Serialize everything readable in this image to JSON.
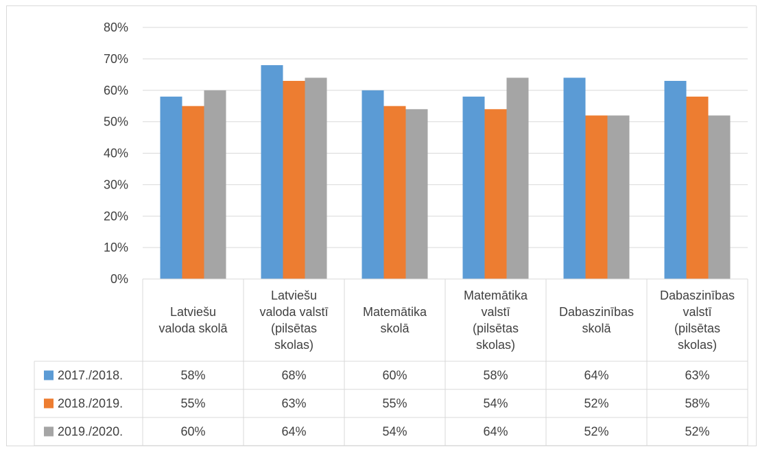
{
  "chart_data": {
    "type": "bar",
    "categories": [
      [
        "Latviešu",
        "valoda skolā"
      ],
      [
        "Latviešu",
        "valoda valstī",
        "(pilsētas",
        "skolas)"
      ],
      [
        "Matemātika",
        "skolā"
      ],
      [
        "Matemātika",
        "valstī",
        "(pilsētas",
        "skolas)"
      ],
      [
        "Dabaszinības",
        "skolā"
      ],
      [
        "Dabaszinības",
        "valstī",
        "(pilsētas",
        "skolas)"
      ]
    ],
    "series": [
      {
        "name": "2017./2018.",
        "color": "#5b9bd5",
        "values": [
          58,
          68,
          60,
          58,
          64,
          63
        ]
      },
      {
        "name": "2018./2019.",
        "color": "#ed7d31",
        "values": [
          55,
          63,
          55,
          54,
          52,
          58
        ]
      },
      {
        "name": "2019./2020.",
        "color": "#a5a5a5",
        "values": [
          60,
          64,
          54,
          64,
          52,
          52
        ]
      }
    ],
    "yticks": [
      "0%",
      "10%",
      "20%",
      "30%",
      "40%",
      "50%",
      "60%",
      "70%",
      "80%"
    ],
    "table_values": [
      [
        "58%",
        "68%",
        "60%",
        "58%",
        "64%",
        "63%"
      ],
      [
        "55%",
        "63%",
        "55%",
        "54%",
        "52%",
        "58%"
      ],
      [
        "60%",
        "64%",
        "54%",
        "64%",
        "52%",
        "52%"
      ]
    ],
    "ylim": [
      0,
      80
    ],
    "grid": true,
    "legend": "data-table"
  }
}
